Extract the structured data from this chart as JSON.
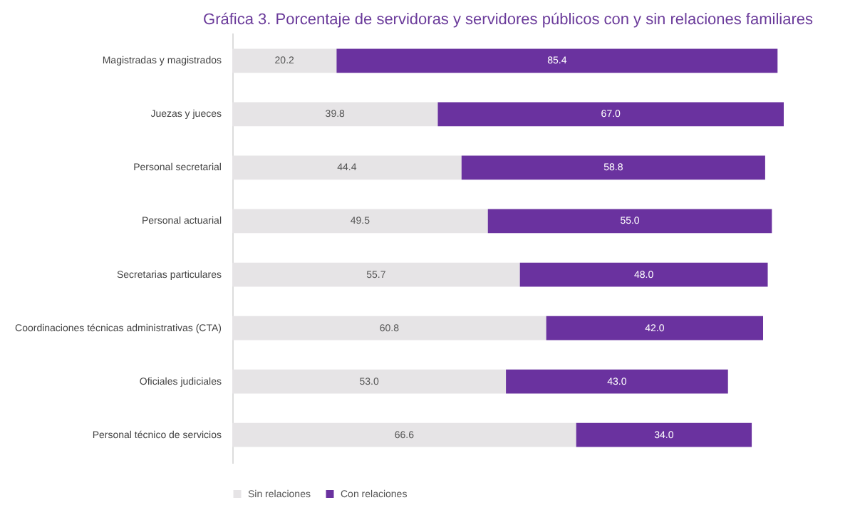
{
  "chart_data": {
    "type": "bar",
    "orientation": "horizontal",
    "stacked": true,
    "title": "Gráfica 3. Porcentaje de servidoras y servidores públicos con y sin relaciones familiares",
    "categories": [
      "Magistradas y magistrados",
      "Juezas y jueces",
      "Personal secretarial",
      "Personal actuarial",
      "Secretarias particulares",
      "Coordinaciones técnicas administrativas (CTA)",
      "Oficiales judiciales",
      "Personal técnico de servicios"
    ],
    "series": [
      {
        "name": "Sin relaciones",
        "color": "#e6e4e6",
        "values": [
          20.2,
          39.8,
          44.4,
          49.5,
          55.7,
          60.8,
          53.0,
          66.6
        ],
        "value_labels": [
          "20.2",
          "39.8",
          "44.4",
          "49.5",
          "55.7",
          "60.8",
          "53.0",
          "66.6"
        ]
      },
      {
        "name": "Con relaciones",
        "color": "#6a329f",
        "values": [
          85.4,
          67.0,
          58.8,
          55.0,
          48.0,
          42.0,
          43.0,
          34.0
        ],
        "value_labels": [
          "85.4",
          "67.0",
          "58.8",
          "55.0",
          "48.0",
          "42.0",
          "43.0",
          "34.0"
        ]
      }
    ],
    "legend": "bottom",
    "grid": false
  }
}
